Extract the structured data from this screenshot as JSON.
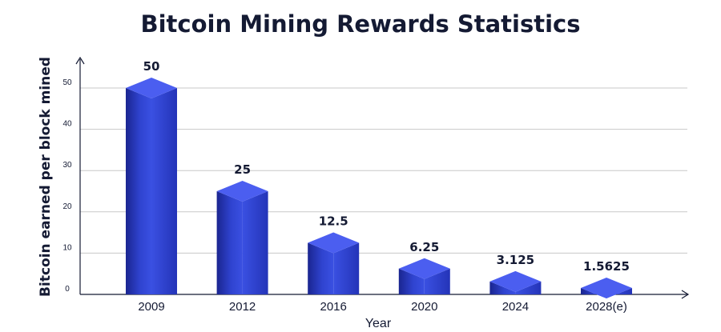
{
  "chart_data": {
    "type": "bar",
    "title": "Bitcoin Mining Rewards Statistics",
    "xlabel": "Year",
    "ylabel": "Bitcoin earned per block mined",
    "categories": [
      "2009",
      "2012",
      "2016",
      "2020",
      "2024",
      "2028(e)"
    ],
    "values": [
      50,
      25,
      12.5,
      6.25,
      3.125,
      1.5625
    ],
    "data_labels": [
      "50",
      "25",
      "12.5",
      "6.25",
      "3.125",
      "1.5625"
    ],
    "yticks": [
      "0",
      "10",
      "20",
      "30",
      "40",
      "50"
    ],
    "ylim": [
      0,
      50
    ],
    "grid": true,
    "legend": "none",
    "colors": {
      "bar_front": "#3347d6",
      "bar_side": "#1f2a9a",
      "bar_top": "#4b5ef0",
      "grid": "#c8c8c8",
      "axis": "#141a33",
      "text": "#141a33"
    }
  }
}
